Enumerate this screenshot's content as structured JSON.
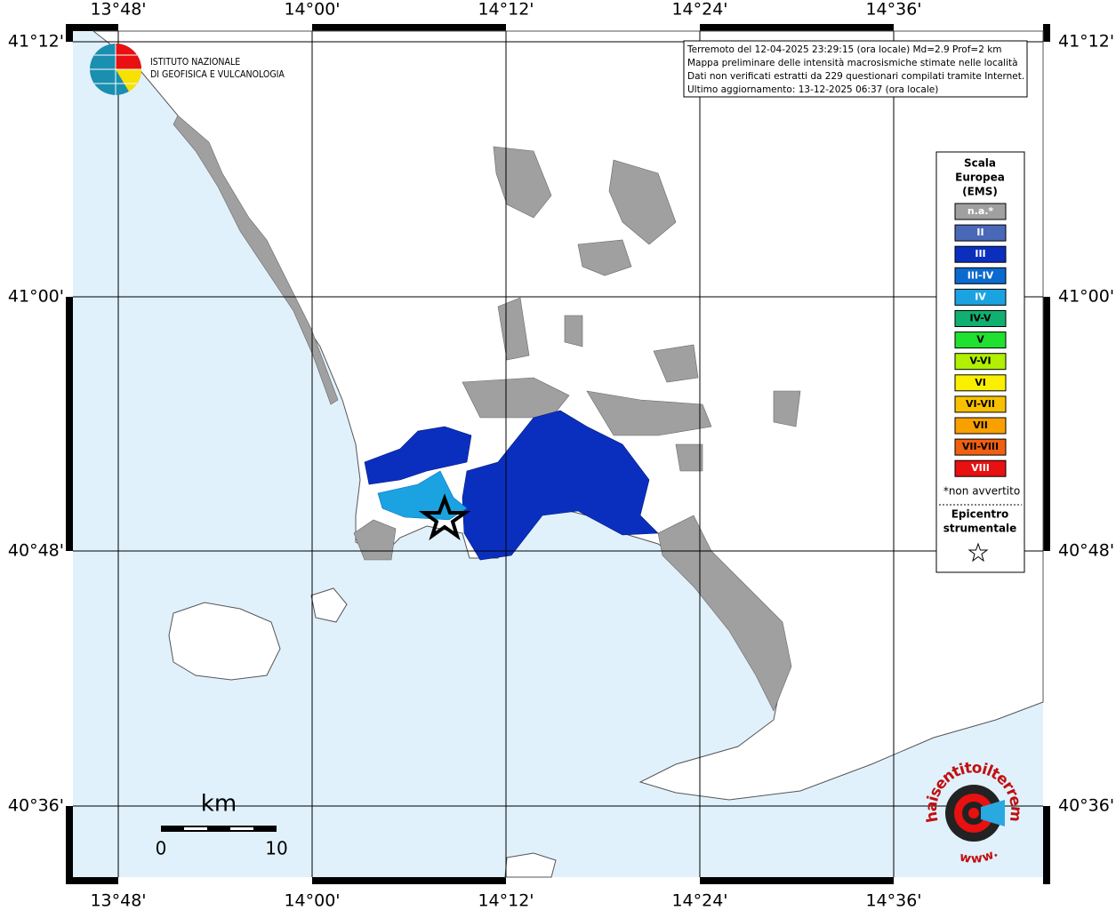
{
  "header": {
    "lines": [
      "Terremoto del 12-04-2025 23:29:15 (ora locale) Md=2.9 Prof=2 km",
      "Mappa preliminare delle intensità macrosismiche stimate nelle località",
      "Dati non verificati estratti da 229 questionari compilati tramite Internet.",
      "Ultimo aggiornamento: 13-12-2025 06:37 (ora locale)"
    ]
  },
  "logo": {
    "lines": [
      "ISTITUTO NAZIONALE",
      "DI GEOFISICA E VULCANOLOGIA"
    ]
  },
  "axes": {
    "longitude": [
      "13°48'",
      "14°00'",
      "14°12'",
      "14°24'",
      "14°36'"
    ],
    "latitude": [
      "41°12'",
      "41°00'",
      "40°48'",
      "40°36'"
    ]
  },
  "legend": {
    "title": [
      "Scala",
      "Europea",
      "(EMS)"
    ],
    "items": [
      {
        "label": "n.a.*",
        "color": "#a0a0a0",
        "text_color": "#ffffff"
      },
      {
        "label": "II",
        "color": "#4a68b8",
        "text_color": "#ffffff"
      },
      {
        "label": "III",
        "color": "#0a2fbf",
        "text_color": "#ffffff"
      },
      {
        "label": "III-IV",
        "color": "#0a6ad0",
        "text_color": "#ffffff"
      },
      {
        "label": "IV",
        "color": "#1aa3e0",
        "text_color": "#ffffff"
      },
      {
        "label": "IV-V",
        "color": "#10b070",
        "text_color": "#000000"
      },
      {
        "label": "V",
        "color": "#20e030",
        "text_color": "#000000"
      },
      {
        "label": "V-VI",
        "color": "#b0f000",
        "text_color": "#000000"
      },
      {
        "label": "VI",
        "color": "#f8f000",
        "text_color": "#000000"
      },
      {
        "label": "VI-VII",
        "color": "#f8c000",
        "text_color": "#000000"
      },
      {
        "label": "VII",
        "color": "#f8a000",
        "text_color": "#000000"
      },
      {
        "label": "VII-VIII",
        "color": "#f06010",
        "text_color": "#000000"
      },
      {
        "label": "VIII",
        "color": "#e81010",
        "text_color": "#ffffff"
      }
    ],
    "note": "*non avvertito",
    "epicenter": [
      "Epicentro",
      "strumentale"
    ]
  },
  "scale_bar": {
    "unit": "km",
    "start": "0",
    "end": "10"
  },
  "watermark": {
    "site": "haisentitoilterremoto.it",
    "prefix": "www."
  }
}
